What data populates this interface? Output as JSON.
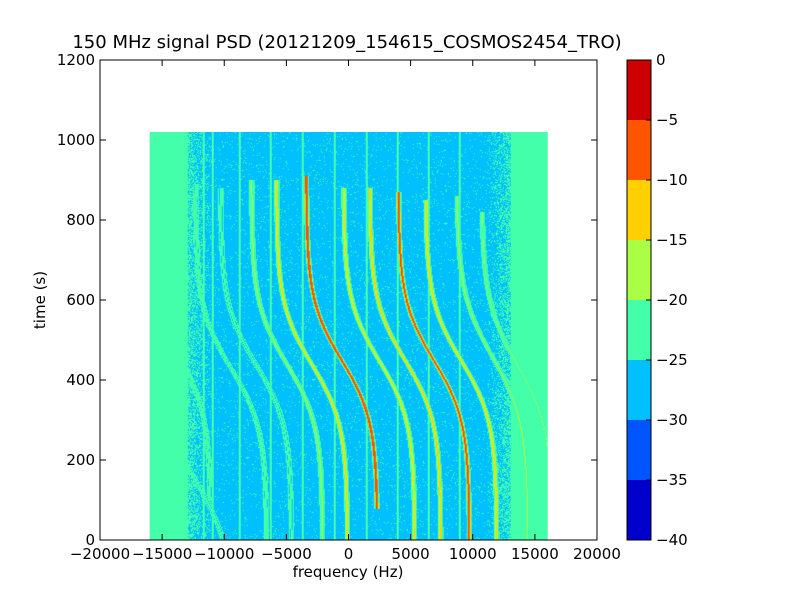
{
  "chart_data": {
    "type": "heatmap",
    "title": "150 MHz signal PSD (20121209_154615_COSMOS2454_TRO)",
    "xlabel": "frequency (Hz)",
    "ylabel": "time (s)",
    "xlim": [
      -20000,
      20000
    ],
    "ylim": [
      0,
      1200
    ],
    "xticks": [
      -20000,
      -15000,
      -10000,
      -5000,
      0,
      5000,
      10000,
      15000,
      20000
    ],
    "yticks": [
      0,
      200,
      400,
      600,
      800,
      1000,
      1200
    ],
    "data_extent": {
      "x": [
        -16000,
        16000
      ],
      "y": [
        0,
        1020
      ]
    },
    "grid": false,
    "colorbar": {
      "ticks": [
        0,
        -5,
        -10,
        -15,
        -20,
        -25,
        -30,
        -35,
        -40
      ],
      "levels": [
        {
          "range": [
            -40,
            -35
          ],
          "color": "#0000cc"
        },
        {
          "range": [
            -35,
            -30
          ],
          "color": "#0055ff"
        },
        {
          "range": [
            -30,
            -25
          ],
          "color": "#00c0ff"
        },
        {
          "range": [
            -25,
            -20
          ],
          "color": "#44ffaa"
        },
        {
          "range": [
            -20,
            -15
          ],
          "color": "#aaff44"
        },
        {
          "range": [
            -15,
            -10
          ],
          "color": "#ffd000"
        },
        {
          "range": [
            -10,
            -5
          ],
          "color": "#ff5500"
        },
        {
          "range": [
            -5,
            0
          ],
          "color": "#cc0000"
        }
      ]
    },
    "background_level_db": -27,
    "edge_band_level_db": -22,
    "traces": [
      {
        "center_hz": -14000,
        "t0_s": 480,
        "width_hz": 2600,
        "rate_s": 160,
        "peak_db": -20,
        "t_range": [
          100,
          840
        ]
      },
      {
        "center_hz": -12000,
        "t0_s": 130,
        "width_hz": 2400,
        "rate_s": 150,
        "peak_db": -21,
        "t_range": [
          0,
          560
        ]
      },
      {
        "center_hz": -9500,
        "t0_s": 430,
        "width_hz": 2600,
        "rate_s": 150,
        "peak_db": -20,
        "t_range": [
          0,
          890
        ]
      },
      {
        "center_hz": -7500,
        "t0_s": 440,
        "width_hz": 2600,
        "rate_s": 150,
        "peak_db": -21,
        "t_range": [
          0,
          880
        ]
      },
      {
        "center_hz": -5000,
        "t0_s": 440,
        "width_hz": 2600,
        "rate_s": 150,
        "peak_db": -18,
        "t_range": [
          0,
          900
        ]
      },
      {
        "center_hz": -3000,
        "t0_s": 440,
        "width_hz": 2600,
        "rate_s": 150,
        "peak_db": -13,
        "t_range": [
          0,
          900
        ]
      },
      {
        "center_hz": -600,
        "t0_s": 450,
        "width_hz": 2600,
        "rate_s": 150,
        "peak_db": -5,
        "t_range": [
          80,
          910
        ]
      },
      {
        "center_hz": 2400,
        "t0_s": 450,
        "width_hz": 2600,
        "rate_s": 150,
        "peak_db": -14,
        "t_range": [
          0,
          880
        ]
      },
      {
        "center_hz": 4500,
        "t0_s": 450,
        "width_hz": 2600,
        "rate_s": 150,
        "peak_db": -12,
        "t_range": [
          0,
          880
        ]
      },
      {
        "center_hz": 6800,
        "t0_s": 450,
        "width_hz": 2600,
        "rate_s": 150,
        "peak_db": -6,
        "t_range": [
          0,
          870
        ]
      },
      {
        "center_hz": 9000,
        "t0_s": 450,
        "width_hz": 2600,
        "rate_s": 150,
        "peak_db": -13,
        "t_range": [
          0,
          850
        ]
      },
      {
        "center_hz": 11500,
        "t0_s": 460,
        "width_hz": 2600,
        "rate_s": 160,
        "peak_db": -18,
        "t_range": [
          0,
          860
        ]
      },
      {
        "center_hz": 13500,
        "t0_s": 440,
        "width_hz": 2600,
        "rate_s": 160,
        "peak_db": -19,
        "t_range": [
          100,
          820
        ]
      }
    ]
  }
}
